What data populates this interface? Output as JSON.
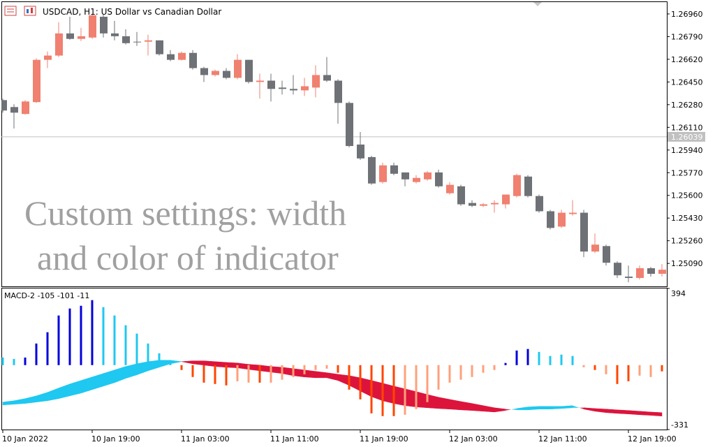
{
  "chart_data": [
    {
      "type": "candlestick",
      "title": "USDCAD, H1:  US Dollar vs Canadian Dollar",
      "annotations": [
        "Custom settings: width",
        "and color of indicator"
      ],
      "categories": [
        "10 Jan 2022",
        null,
        null,
        null,
        null,
        null,
        null,
        null,
        "10 Jan 19:00",
        null,
        null,
        null,
        null,
        null,
        null,
        null,
        "11 Jan 03:00",
        null,
        null,
        null,
        null,
        null,
        null,
        null,
        "11 Jan 11:00",
        null,
        null,
        null,
        null,
        null,
        null,
        null,
        "11 Jan 19:00",
        null,
        null,
        null,
        null,
        null,
        null,
        null,
        "12 Jan 03:00",
        null,
        null,
        null,
        null,
        null,
        null,
        null,
        "12 Jan 11:00",
        null,
        null,
        null,
        null,
        null,
        null,
        null,
        "12 Jan 19:00",
        null,
        null,
        null
      ],
      "open": [
        1.26314,
        1.26262,
        1.2621,
        1.26299,
        1.26616,
        1.26648,
        1.26814,
        1.26773,
        1.26783,
        1.26939,
        1.26814,
        1.26793,
        1.26752,
        1.26752,
        1.26762,
        1.26658,
        1.26616,
        1.26668,
        1.26554,
        1.26502,
        1.26533,
        1.26481,
        1.26616,
        1.2645,
        1.2646,
        1.26408,
        1.26398,
        1.26387,
        1.26408,
        1.26502,
        1.2646,
        1.26293,
        1.25981,
        1.25887,
        1.257,
        1.25825,
        1.25772,
        1.257,
        1.2572,
        1.25772,
        1.25616,
        1.25668,
        1.25543,
        1.25522,
        1.25533,
        1.25533,
        1.25595,
        1.25741,
        1.25595,
        1.25481,
        1.25366,
        1.2546,
        1.2547,
        1.25179,
        1.2522,
        1.25095,
        1.24991,
        1.24981,
        1.25054,
        1.25012
      ],
      "high": [
        1.26325,
        1.26283,
        1.26314,
        1.26627,
        1.26679,
        1.26898,
        1.26939,
        1.26856,
        1.2696,
        1.2696,
        1.26908,
        1.26845,
        1.26825,
        1.26804,
        1.26762,
        1.26689,
        1.26679,
        1.26689,
        1.26564,
        1.26543,
        1.26554,
        1.26658,
        1.26616,
        1.26512,
        1.26512,
        1.2646,
        1.26502,
        1.26481,
        1.26575,
        1.26637,
        1.2647,
        1.26304,
        1.26075,
        1.25897,
        1.25845,
        1.25845,
        1.25772,
        1.25752,
        1.25783,
        1.25793,
        1.257,
        1.25679,
        1.25564,
        1.25543,
        1.25564,
        1.25606,
        1.25762,
        1.25752,
        1.25606,
        1.25491,
        1.25491,
        1.25564,
        1.25491,
        1.25314,
        1.25231,
        1.25106,
        1.25074,
        1.25074,
        1.25064,
        1.25085
      ],
      "low": [
        1.2622,
        1.26101,
        1.26205,
        1.26293,
        1.26554,
        1.26637,
        1.26767,
        1.26757,
        1.26773,
        1.26783,
        1.26762,
        1.26731,
        1.2672,
        1.26648,
        1.26648,
        1.26606,
        1.26611,
        1.26543,
        1.2645,
        1.26491,
        1.2647,
        1.2647,
        1.26439,
        1.26325,
        1.26304,
        1.26356,
        1.26356,
        1.26345,
        1.26335,
        1.2645,
        1.26137,
        1.2596,
        1.25866,
        1.25679,
        1.25689,
        1.25752,
        1.25668,
        1.25689,
        1.2571,
        1.25658,
        1.25606,
        1.25522,
        1.25512,
        1.25512,
        1.2547,
        1.25502,
        1.25585,
        1.25585,
        1.2547,
        1.25345,
        1.25356,
        1.25449,
        1.25137,
        1.25168,
        1.25074,
        1.24981,
        1.24949,
        1.2497,
        1.24991,
        1.24991
      ],
      "close": [
        1.26236,
        1.2622,
        1.26304,
        1.26616,
        1.26648,
        1.26814,
        1.26773,
        1.26793,
        1.2695,
        1.26814,
        1.26793,
        1.26741,
        1.26752,
        1.26762,
        1.26658,
        1.26616,
        1.26668,
        1.26554,
        1.26502,
        1.26533,
        1.26481,
        1.26616,
        1.2645,
        1.2646,
        1.26398,
        1.26398,
        1.26387,
        1.26418,
        1.26502,
        1.2646,
        1.26293,
        1.2597,
        1.25877,
        1.25689,
        1.25825,
        1.25762,
        1.2572,
        1.25731,
        1.25772,
        1.25668,
        1.25679,
        1.25533,
        1.25522,
        1.25533,
        1.25543,
        1.25606,
        1.25752,
        1.25595,
        1.25481,
        1.25356,
        1.2547,
        1.2547,
        1.25179,
        1.25231,
        1.25095,
        1.25001,
        1.24981,
        1.25054,
        1.25012,
        1.25043
      ],
      "up_color": "#f08070",
      "down_color": "#6e7175",
      "ylim": [
        1.24918,
        1.27054
      ],
      "yticks": [
        {
          "value": 1.2696,
          "label": "1.26960"
        },
        {
          "value": 1.2679,
          "label": "1.26790"
        },
        {
          "value": 1.2662,
          "label": "1.26620"
        },
        {
          "value": 1.2645,
          "label": "1.26450"
        },
        {
          "value": 1.2628,
          "label": "1.26280"
        },
        {
          "value": 1.2611,
          "label": "1.26110"
        },
        {
          "value": 1.2594,
          "label": "1.25940"
        },
        {
          "value": 1.2577,
          "label": "1.25770"
        },
        {
          "value": 1.256,
          "label": "1.25600"
        },
        {
          "value": 1.2543,
          "label": "1.25430"
        },
        {
          "value": 1.2526,
          "label": "1.25260"
        },
        {
          "value": 1.2509,
          "label": "1.25090"
        }
      ],
      "current_price": {
        "value": 1.26039,
        "label": "1.26039"
      }
    },
    {
      "type": "macd",
      "title": "MACD-2 -105 -101 -11",
      "histogram": {
        "values": [
          39,
          32,
          39,
          111,
          169,
          255,
          291,
          305,
          334,
          298,
          255,
          205,
          162,
          111,
          61,
          11,
          -25,
          -61,
          -90,
          -97,
          -104,
          -83,
          -90,
          -90,
          -90,
          -75,
          -61,
          -47,
          -25,
          -18,
          -39,
          -126,
          -176,
          -248,
          -262,
          -262,
          -255,
          -226,
          -190,
          -126,
          -90,
          -75,
          -61,
          -39,
          -25,
          11,
          75,
          83,
          68,
          47,
          54,
          47,
          -11,
          -25,
          -47,
          -97,
          -83,
          -54,
          -61,
          -32
        ],
        "colors": [
          "#1ec8f0",
          "#1ec8f0",
          "#0000dd",
          "#0000dd",
          "#0000dd",
          "#0000dd",
          "#0000dd",
          "#0000dd",
          "#0000dd",
          "#1ec8f0",
          "#1ec8f0",
          "#1ec8f0",
          "#1ec8f0",
          "#1ec8f0",
          "#1ec8f0",
          "#1ec8f0",
          "#ff4500",
          "#ff4500",
          "#ff4500",
          "#ff4500",
          "#ff4500",
          "#ffa07a",
          "#ffa07a",
          "#ff4500",
          "#ffa07a",
          "#ffa07a",
          "#ffa07a",
          "#ffa07a",
          "#ffa07a",
          "#ffa07a",
          "#ff4500",
          "#ff4500",
          "#ff4500",
          "#ff4500",
          "#ff4500",
          "#ff4500",
          "#ffa07a",
          "#ffa07a",
          "#ffa07a",
          "#ffa07a",
          "#ffa07a",
          "#ffa07a",
          "#ffa07a",
          "#ffa07a",
          "#ffa07a",
          "#0000dd",
          "#0000dd",
          "#0000dd",
          "#1ec8f0",
          "#1ec8f0",
          "#1ec8f0",
          "#1ec8f0",
          "#ffa07a",
          "#ff4500",
          "#ffa07a",
          "#ff4500",
          "#ff4500",
          "#ffa07a",
          "#ffa07a",
          "#ff4500"
        ]
      },
      "macd": [
        -190,
        -183,
        -172,
        -158,
        -140,
        -118,
        -97,
        -79,
        -61,
        -43,
        -25,
        -7,
        7,
        18,
        25,
        25,
        18,
        7,
        0,
        -7,
        -11,
        -14,
        -22,
        -29,
        -36,
        -43,
        -54,
        -61,
        -65,
        -65,
        -79,
        -104,
        -133,
        -162,
        -183,
        -197,
        -208,
        -215,
        -219,
        -223,
        -226,
        -230,
        -233,
        -237,
        -241,
        -233,
        -223,
        -215,
        -212,
        -212,
        -212,
        -208,
        -226,
        -237,
        -244,
        -248,
        -251,
        -255,
        -258,
        -262
      ],
      "signal": [
        -205,
        -201,
        -197,
        -190,
        -183,
        -172,
        -158,
        -144,
        -126,
        -108,
        -90,
        -68,
        -50,
        -29,
        -11,
        7,
        18,
        22,
        22,
        18,
        14,
        11,
        4,
        0,
        -7,
        -11,
        -18,
        -25,
        -32,
        -39,
        -47,
        -54,
        -65,
        -79,
        -93,
        -108,
        -122,
        -136,
        -151,
        -165,
        -176,
        -187,
        -197,
        -208,
        -219,
        -226,
        -230,
        -230,
        -226,
        -226,
        -223,
        -219,
        -219,
        -223,
        -226,
        -230,
        -233,
        -237,
        -241,
        -244
      ],
      "fill_above_color": "#1ec8f0",
      "fill_below_color": "#dc143c",
      "ylim": [
        -331,
        394
      ],
      "yticks": [
        394,
        -331
      ]
    }
  ]
}
